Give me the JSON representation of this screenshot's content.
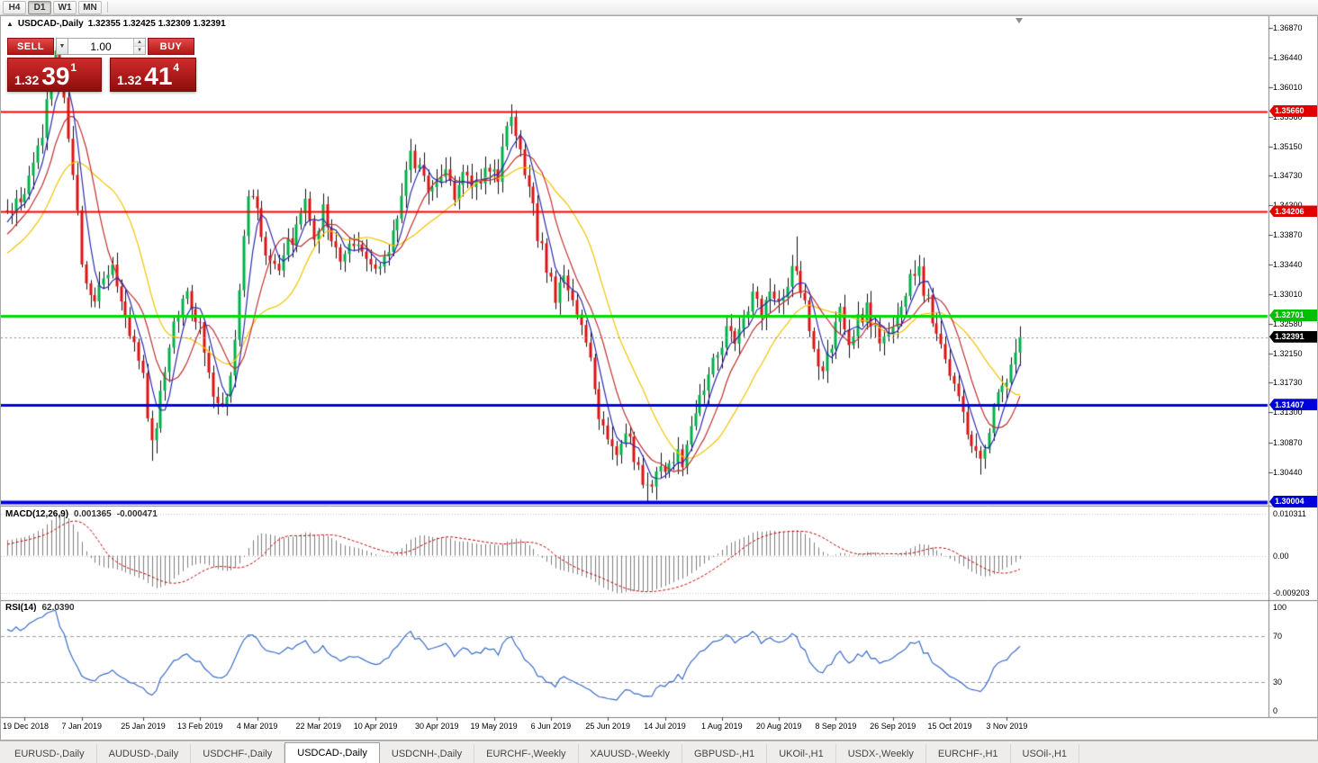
{
  "toolbar": {
    "periods": [
      "H4",
      "D1",
      "W1",
      "MN"
    ],
    "active": "D1"
  },
  "chart": {
    "symbol_title": "USDCAD-,Daily",
    "ohlc": "1.32355 1.32425 1.32309 1.32391",
    "one_click": {
      "sell_label": "SELL",
      "buy_label": "BUY",
      "volume": "1.00",
      "sell_price": {
        "base": "1.32",
        "big": "39",
        "sup": "1"
      },
      "buy_price": {
        "base": "1.32",
        "big": "41",
        "sup": "4"
      }
    },
    "price_axis_ticks": [
      "1.36870",
      "1.36440",
      "1.36010",
      "1.35580",
      "1.35150",
      "1.34730",
      "1.34300",
      "1.33870",
      "1.33440",
      "1.33010",
      "1.32580",
      "1.32150",
      "1.31730",
      "1.31300",
      "1.30870",
      "1.30440"
    ],
    "levels": [
      {
        "value": "1.35660",
        "color": "red",
        "style": "solid",
        "width": 2
      },
      {
        "value": "1.34206",
        "color": "red",
        "style": "solid",
        "width": 2
      },
      {
        "value": "1.32701",
        "color": "green",
        "style": "solid",
        "width": 3
      },
      {
        "value": "1.31407",
        "color": "blue",
        "style": "solid",
        "width": 3
      },
      {
        "value": "1.30004",
        "color": "blue",
        "style": "solid",
        "width": 4
      },
      {
        "value": "1.32391",
        "color": "black",
        "style": "bid",
        "width": 1
      }
    ],
    "time_labels": [
      {
        "i": 4,
        "t": "19 Dec 2018"
      },
      {
        "i": 17,
        "t": "7 Jan 2019"
      },
      {
        "i": 31,
        "t": "25 Jan 2019"
      },
      {
        "i": 44,
        "t": "13 Feb 2019"
      },
      {
        "i": 57,
        "t": "4 Mar 2019"
      },
      {
        "i": 71,
        "t": "22 Mar 2019"
      },
      {
        "i": 84,
        "t": "10 Apr 2019"
      },
      {
        "i": 98,
        "t": "30 Apr 2019"
      },
      {
        "i": 111,
        "t": "19 May 2019"
      },
      {
        "i": 124,
        "t": "6 Jun 2019"
      },
      {
        "i": 137,
        "t": "25 Jun 2019"
      },
      {
        "i": 150,
        "t": "14 Jul 2019"
      },
      {
        "i": 163,
        "t": "1 Aug 2019"
      },
      {
        "i": 176,
        "t": "20 Aug 2019"
      },
      {
        "i": 189,
        "t": "8 Sep 2019"
      },
      {
        "i": 202,
        "t": "26 Sep 2019"
      },
      {
        "i": 215,
        "t": "15 Oct 2019"
      },
      {
        "i": 228,
        "t": "3 Nov 2019"
      }
    ],
    "colors": {
      "bull": "#00b24a",
      "bear": "#dc1414",
      "ma_fast": "#2a2ab0",
      "ma_mid": "#c03030",
      "ma_slow": "#f2c200",
      "hline_red": "#ff0000",
      "hline_green": "#00dd00",
      "hline_blue": "#0000ee"
    }
  },
  "macd": {
    "label": "MACD(12,26,9)",
    "value_main": "0.001365",
    "value_signal": "-0.000471",
    "axis": [
      "0.010311",
      "0.00",
      "-0.009203"
    ]
  },
  "rsi": {
    "label": "RSI(14)",
    "value": "62.0390",
    "axis": [
      "100",
      "70",
      "30",
      "0"
    ]
  },
  "tabs": {
    "items": [
      "EURUSD-,Daily",
      "AUDUSD-,Daily",
      "USDCHF-,Daily",
      "USDCAD-,Daily",
      "USDCNH-,Daily",
      "EURCHF-,Weekly",
      "XAUUSD-,Weekly",
      "GBPUSD-,H1",
      "UKOil-,H1",
      "USDX-,Weekly",
      "EURCHF-,H1",
      "USOil-,H1"
    ],
    "active_index": 3
  },
  "chart_data": {
    "type": "candlestick",
    "symbol": "USDCAD-",
    "timeframe": "Daily",
    "candle_count": 232,
    "last_close": 1.32391,
    "ohlc_display": {
      "open": 1.32355,
      "high": 1.32425,
      "low": 1.32309,
      "close": 1.32391
    },
    "price_axis_range": [
      1.30004,
      1.3687
    ],
    "horizontal_levels": [
      1.3566,
      1.34206,
      1.32701,
      1.31407,
      1.30004
    ],
    "ma_periods": {
      "fast": 5,
      "mid": 10,
      "slow": 20
    },
    "macd_params": [
      12,
      26,
      9
    ],
    "macd_current": {
      "main": 0.001365,
      "signal": -0.000471
    },
    "macd_axis_range": [
      0.010311,
      -0.009203
    ],
    "rsi_period": 14,
    "rsi_current": 62.039,
    "close_waypoints": [
      [
        -25,
        1.331
      ],
      [
        -12,
        1.334
      ],
      [
        -4,
        1.339
      ],
      [
        0,
        1.3425
      ],
      [
        4,
        1.344
      ],
      [
        8,
        1.354
      ],
      [
        11,
        1.3642
      ],
      [
        13,
        1.359
      ],
      [
        15,
        1.348
      ],
      [
        17,
        1.3355
      ],
      [
        19,
        1.329
      ],
      [
        22,
        1.333
      ],
      [
        24,
        1.335
      ],
      [
        26,
        1.33
      ],
      [
        29,
        1.323
      ],
      [
        31,
        1.318
      ],
      [
        33,
        1.3085
      ],
      [
        35,
        1.315
      ],
      [
        38,
        1.327
      ],
      [
        41,
        1.3295
      ],
      [
        44,
        1.325
      ],
      [
        46,
        1.319
      ],
      [
        48,
        1.314
      ],
      [
        50,
        1.3155
      ],
      [
        52,
        1.323
      ],
      [
        53,
        1.332
      ],
      [
        55,
        1.345
      ],
      [
        57,
        1.343
      ],
      [
        59,
        1.336
      ],
      [
        62,
        1.333
      ],
      [
        64,
        1.337
      ],
      [
        66,
        1.34
      ],
      [
        68,
        1.3435
      ],
      [
        70,
        1.339
      ],
      [
        72,
        1.342
      ],
      [
        74,
        1.338
      ],
      [
        76,
        1.3355
      ],
      [
        78,
        1.337
      ],
      [
        80,
        1.3385
      ],
      [
        82,
        1.335
      ],
      [
        84,
        1.333
      ],
      [
        86,
        1.3345
      ],
      [
        88,
        1.339
      ],
      [
        90,
        1.345
      ],
      [
        92,
        1.35
      ],
      [
        94,
        1.348
      ],
      [
        97,
        1.345
      ],
      [
        100,
        1.348
      ],
      [
        102,
        1.345
      ],
      [
        104,
        1.348
      ],
      [
        106,
        1.3445
      ],
      [
        108,
        1.347
      ],
      [
        110,
        1.349
      ],
      [
        112,
        1.347
      ],
      [
        114,
        1.3535
      ],
      [
        115,
        1.355
      ],
      [
        117,
        1.35
      ],
      [
        119,
        1.345
      ],
      [
        121,
        1.339
      ],
      [
        123,
        1.334
      ],
      [
        125,
        1.33
      ],
      [
        127,
        1.332
      ],
      [
        129,
        1.329
      ],
      [
        131,
        1.326
      ],
      [
        133,
        1.321
      ],
      [
        135,
        1.313
      ],
      [
        137,
        1.309
      ],
      [
        139,
        1.307
      ],
      [
        141,
        1.311
      ],
      [
        143,
        1.306
      ],
      [
        145,
        1.303
      ],
      [
        146,
        1.3015
      ],
      [
        148,
        1.305
      ],
      [
        150,
        1.304
      ],
      [
        152,
        1.307
      ],
      [
        154,
        1.306
      ],
      [
        156,
        1.311
      ],
      [
        158,
        1.315
      ],
      [
        160,
        1.318
      ],
      [
        162,
        1.322
      ],
      [
        164,
        1.325
      ],
      [
        166,
        1.323
      ],
      [
        168,
        1.327
      ],
      [
        170,
        1.33
      ],
      [
        172,
        1.328
      ],
      [
        174,
        1.331
      ],
      [
        176,
        1.329
      ],
      [
        178,
        1.332
      ],
      [
        180,
        1.334
      ],
      [
        182,
        1.328
      ],
      [
        184,
        1.321
      ],
      [
        186,
        1.318
      ],
      [
        188,
        1.323
      ],
      [
        190,
        1.327
      ],
      [
        192,
        1.324
      ],
      [
        194,
        1.326
      ],
      [
        196,
        1.328
      ],
      [
        198,
        1.325
      ],
      [
        200,
        1.323
      ],
      [
        202,
        1.326
      ],
      [
        204,
        1.329
      ],
      [
        206,
        1.332
      ],
      [
        208,
        1.333
      ],
      [
        210,
        1.329
      ],
      [
        212,
        1.324
      ],
      [
        214,
        1.322
      ],
      [
        216,
        1.317
      ],
      [
        218,
        1.312
      ],
      [
        220,
        1.308
      ],
      [
        222,
        1.306
      ],
      [
        224,
        1.311
      ],
      [
        226,
        1.316
      ],
      [
        228,
        1.3175
      ],
      [
        230,
        1.322
      ],
      [
        231,
        1.32391
      ]
    ],
    "wick_anchors": [
      [
        11,
        "h",
        1.3655
      ],
      [
        33,
        "l",
        1.306
      ],
      [
        115,
        "h",
        1.356
      ],
      [
        146,
        "l",
        1.3
      ],
      [
        180,
        "h",
        1.3385
      ],
      [
        222,
        "l",
        1.304
      ]
    ]
  }
}
